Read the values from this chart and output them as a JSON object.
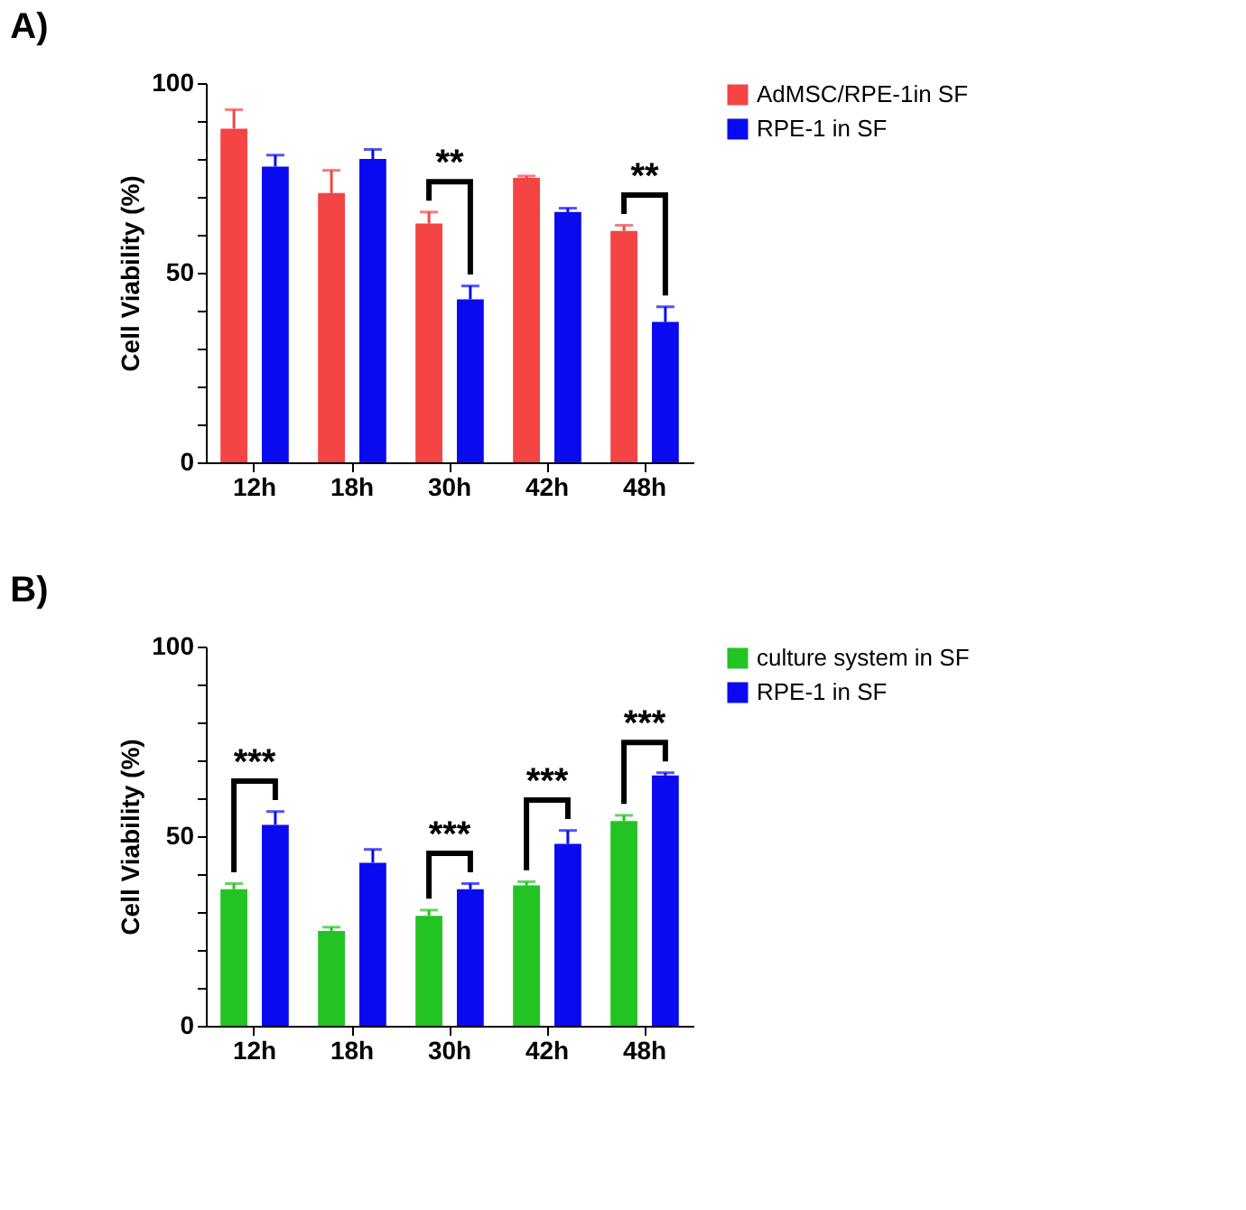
{
  "chart_data": [
    {
      "type": "bar",
      "title": "A)",
      "ylabel": "Cell Viability (%)",
      "categories": [
        "12h",
        "18h",
        "30h",
        "42h",
        "48h"
      ],
      "series": [
        {
          "name": "AdMSC/RPE-1in SF",
          "color": "#f44444",
          "values": [
            88,
            71,
            63,
            75,
            61
          ],
          "errors": [
            [
              88,
              93
            ],
            [
              71,
              77
            ],
            [
              63,
              66
            ],
            [
              75,
              75.5
            ],
            [
              61,
              62.5
            ]
          ]
        },
        {
          "name": "RPE-1 in SF",
          "color": "#0a0af0",
          "values": [
            78,
            80,
            43,
            66,
            37
          ],
          "errors": [
            [
              78,
              81
            ],
            [
              80,
              82.5
            ],
            [
              43,
              46.5
            ],
            [
              66,
              67
            ],
            [
              37,
              41
            ]
          ]
        }
      ],
      "ylim": [
        0,
        100
      ],
      "yticks": [
        0,
        {
          "value": 10,
          "label": null
        },
        {
          "value": 20,
          "label": null
        },
        {
          "value": 30,
          "label": null
        },
        {
          "value": 40,
          "label": null
        },
        50,
        {
          "value": 60,
          "label": null
        },
        {
          "value": 70,
          "label": null
        },
        {
          "value": 80,
          "label": null
        },
        {
          "value": 90,
          "label": null
        },
        100
      ],
      "annotations": [
        {
          "text": "**",
          "x": "30h",
          "y": 63
        },
        {
          "text": "**",
          "x": "48h",
          "y": 61
        }
      ],
      "legend": "top right",
      "grid": false
    },
    {
      "type": "bar",
      "title": "B)",
      "ylabel": "Cell Viability (%)",
      "categories": [
        "12h",
        "18h",
        "30h",
        "42h",
        "48h"
      ],
      "series": [
        {
          "name": "culture system in SF",
          "color": "#22c322",
          "values": [
            36,
            25,
            29,
            37,
            54
          ],
          "errors": [
            [
              36,
              37.5
            ],
            [
              25,
              26
            ],
            [
              29,
              30.5
            ],
            [
              37,
              38
            ],
            [
              54,
              55.5
            ]
          ]
        },
        {
          "name": "RPE-1 in SF",
          "color": "#0a0af0",
          "values": [
            53,
            43,
            36,
            48,
            66
          ],
          "errors": [
            [
              53,
              56.5
            ],
            [
              43,
              46.5
            ],
            [
              36,
              37.5
            ],
            [
              48,
              51.5
            ],
            [
              66,
              66.7
            ]
          ]
        }
      ],
      "ylim": [
        0,
        100
      ],
      "yticks": [
        0,
        {
          "value": 10,
          "label": null
        },
        {
          "value": 20,
          "label": null
        },
        {
          "value": 30,
          "label": null
        },
        {
          "value": 40,
          "label": null
        },
        50,
        {
          "value": 60,
          "label": null
        },
        {
          "value": 70,
          "label": null
        },
        {
          "value": 80,
          "label": null
        },
        {
          "value": 90,
          "label": null
        },
        100
      ],
      "annotations": [
        {
          "text": "***",
          "x": "12h",
          "y": 53
        },
        {
          "text": "***",
          "x": "30h",
          "y": 36
        },
        {
          "text": "***",
          "x": "42h",
          "y": 48
        },
        {
          "text": "***",
          "x": "48h",
          "y": 66
        }
      ],
      "legend": "top right",
      "grid": false
    }
  ]
}
